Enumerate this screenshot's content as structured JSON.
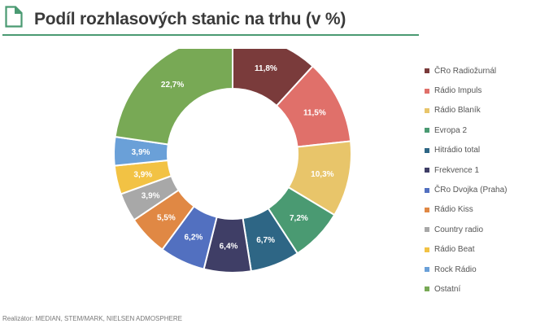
{
  "header": {
    "icon": "document-icon",
    "title": "Podíl rozhlasových stanic na trhu (v %)",
    "accent_color": "#4a9a72"
  },
  "footer": {
    "text": "Realizátor: MEDIAN, STEM/MARK, NIELSEN ADMOSPHERE"
  },
  "chart_data": {
    "type": "pie",
    "subtype": "doughnut",
    "title": "Podíl rozhlasových stanic na trhu (v %)",
    "categories": [
      "ČRo Radiožurnál",
      "Rádio Impuls",
      "Rádio Blaník",
      "Evropa 2",
      "Hitrádio total",
      "Frekvence 1",
      "ČRo Dvojka (Praha)",
      "Rádio Kiss",
      "Country radio",
      "Rádio Beat",
      "Rock Rádio",
      "Ostatní"
    ],
    "values": [
      11.8,
      11.5,
      10.3,
      7.2,
      6.7,
      6.4,
      6.2,
      5.5,
      3.9,
      3.9,
      3.9,
      22.7
    ],
    "labels": [
      "11,8%",
      "11,5%",
      "10,3%",
      "7,2%",
      "6,7%",
      "6,4%",
      "6,2%",
      "5,5%",
      "3,9%",
      "3,9%",
      "3,9%",
      "22,7%"
    ],
    "colors": [
      "#7a3b3b",
      "#e0706a",
      "#e8c56a",
      "#4a9a72",
      "#2e6685",
      "#3f3e66",
      "#5270c0",
      "#e08844",
      "#a8a8a8",
      "#f2c244",
      "#6aa0d8",
      "#78a955"
    ],
    "legend_position": "right",
    "start_angle_deg": 0,
    "direction": "clockwise"
  },
  "legend": {
    "items": [
      {
        "label": "ČRo Radiožurnál",
        "color": "#7a3b3b"
      },
      {
        "label": "Rádio Impuls",
        "color": "#e0706a"
      },
      {
        "label": "Rádio Blaník",
        "color": "#e8c56a"
      },
      {
        "label": "Evropa 2",
        "color": "#4a9a72"
      },
      {
        "label": "Hitrádio total",
        "color": "#2e6685"
      },
      {
        "label": "Frekvence 1",
        "color": "#3f3e66"
      },
      {
        "label": "ČRo Dvojka (Praha)",
        "color": "#5270c0"
      },
      {
        "label": "Rádio Kiss",
        "color": "#e08844"
      },
      {
        "label": "Country radio",
        "color": "#a8a8a8"
      },
      {
        "label": "Rádio Beat",
        "color": "#f2c244"
      },
      {
        "label": "Rock Rádio",
        "color": "#6aa0d8"
      },
      {
        "label": "Ostatní",
        "color": "#78a955"
      }
    ]
  }
}
